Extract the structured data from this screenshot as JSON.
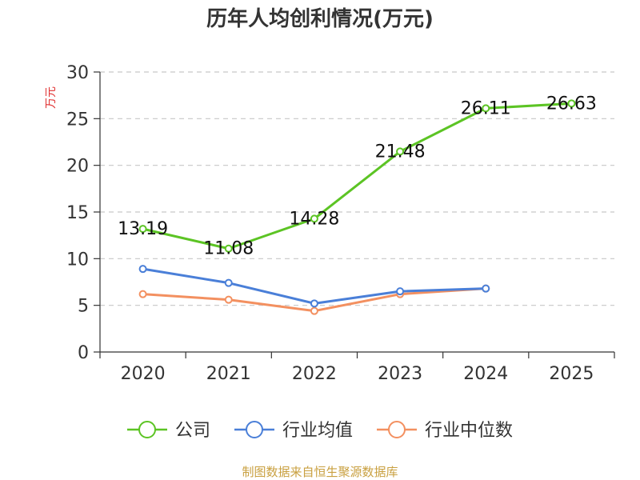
{
  "chart_data": {
    "type": "line",
    "title": "历年人均创利情况(万元)",
    "ylabel": "万元",
    "ylim": [
      0,
      30
    ],
    "yticks": [
      0,
      5,
      10,
      15,
      20,
      25,
      30
    ],
    "categories": [
      "2020",
      "2021",
      "2022",
      "2023",
      "2024",
      "2025"
    ],
    "grid": true,
    "legend_position": "bottom",
    "series": [
      {
        "name": "公司",
        "color": "#5cc424",
        "labeled": true,
        "values": [
          13.19,
          11.08,
          14.28,
          21.48,
          26.11,
          26.63
        ]
      },
      {
        "name": "行业均值",
        "color": "#4a7fd8",
        "labeled": false,
        "values": [
          8.9,
          7.4,
          5.2,
          6.5,
          6.8,
          null
        ]
      },
      {
        "name": "行业中位数",
        "color": "#f39060",
        "labeled": false,
        "values": [
          6.2,
          5.6,
          4.4,
          6.2,
          6.8,
          null
        ]
      }
    ]
  },
  "source": "制图数据来自恒生聚源数据库"
}
